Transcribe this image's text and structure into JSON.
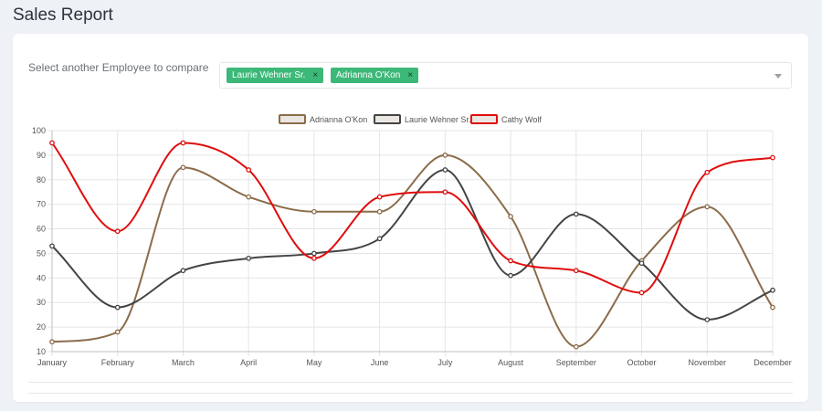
{
  "page": {
    "title": "Sales Report"
  },
  "compare": {
    "label": "Select another Employee to compare",
    "selected": [
      {
        "name": "Laurie Wehner Sr.",
        "remove": "×"
      },
      {
        "name": "Adrianna O'Kon",
        "remove": "×"
      }
    ]
  },
  "chart_data": {
    "type": "line",
    "categories": [
      "January",
      "February",
      "March",
      "April",
      "May",
      "June",
      "July",
      "August",
      "September",
      "October",
      "November",
      "December"
    ],
    "ylim": [
      10,
      100
    ],
    "yticks": [
      "10",
      "20",
      "30",
      "40",
      "50",
      "60",
      "70",
      "80",
      "90",
      "100"
    ],
    "grid": true,
    "legend_position": "top",
    "series": [
      {
        "name": "Adrianna O'Kon",
        "color": "#8b6c4a",
        "values": [
          14,
          18,
          85,
          73,
          67,
          67,
          90,
          65,
          12,
          47,
          69,
          28
        ]
      },
      {
        "name": "Laurie Wehner Sr.",
        "color": "#444444",
        "values": [
          53,
          28,
          43,
          48,
          50,
          56,
          84,
          41,
          66,
          46,
          23,
          35
        ]
      },
      {
        "name": "Cathy Wolf",
        "color": "#e00d0d",
        "values": [
          95,
          59,
          95,
          84,
          48,
          73,
          75,
          47,
          43,
          34,
          83,
          89
        ]
      }
    ]
  }
}
